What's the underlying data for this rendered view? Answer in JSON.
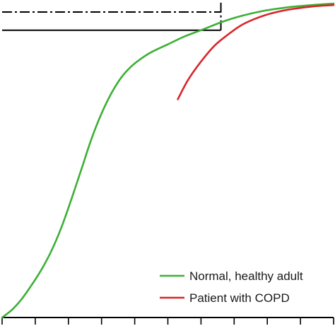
{
  "chart_data": {
    "type": "line",
    "title": "",
    "xlabel": "",
    "ylabel": "",
    "xlim": [
      0,
      10
    ],
    "ylim": [
      0,
      10
    ],
    "x_ticks": [
      0,
      1,
      2,
      3,
      4,
      5,
      6,
      7,
      8,
      9,
      10
    ],
    "grid": false,
    "legend_position": "bottom-right",
    "series": [
      {
        "name": "Normal, healthy adult",
        "color": "#3cb035",
        "x": [
          0.0,
          0.3,
          0.6,
          0.9,
          1.2,
          1.5,
          1.8,
          2.1,
          2.4,
          2.7,
          3.0,
          3.3,
          3.6,
          3.9,
          4.2,
          4.5,
          5.0,
          5.5,
          6.0,
          6.6,
          7.2,
          7.8,
          8.4,
          9.0,
          9.6,
          10.0
        ],
        "y": [
          0.0,
          0.25,
          0.6,
          1.05,
          1.55,
          2.15,
          2.9,
          3.8,
          4.75,
          5.7,
          6.5,
          7.15,
          7.65,
          8.0,
          8.25,
          8.45,
          8.7,
          8.95,
          9.15,
          9.4,
          9.6,
          9.75,
          9.85,
          9.92,
          9.97,
          10.0
        ]
      },
      {
        "name": "Patient with COPD",
        "color": "#d9262b",
        "x": [
          5.3,
          5.6,
          6.0,
          6.4,
          6.8,
          7.2,
          7.6,
          8.0,
          8.5,
          9.0,
          9.5,
          10.0
        ],
        "y": [
          6.95,
          7.55,
          8.15,
          8.65,
          9.0,
          9.3,
          9.5,
          9.65,
          9.78,
          9.86,
          9.92,
          9.95
        ]
      }
    ],
    "reference_lines": [
      {
        "style": "solid",
        "color": "#000000",
        "x_range": [
          0,
          6.6
        ],
        "y": 9.15
      },
      {
        "style": "dash-dot",
        "color": "#000000",
        "x_range": [
          0,
          6.6
        ],
        "y": 9.73
      },
      {
        "style": "dash-dot",
        "color": "#000000",
        "x": 6.6,
        "y_range": [
          9.15,
          10.2
        ]
      }
    ]
  }
}
